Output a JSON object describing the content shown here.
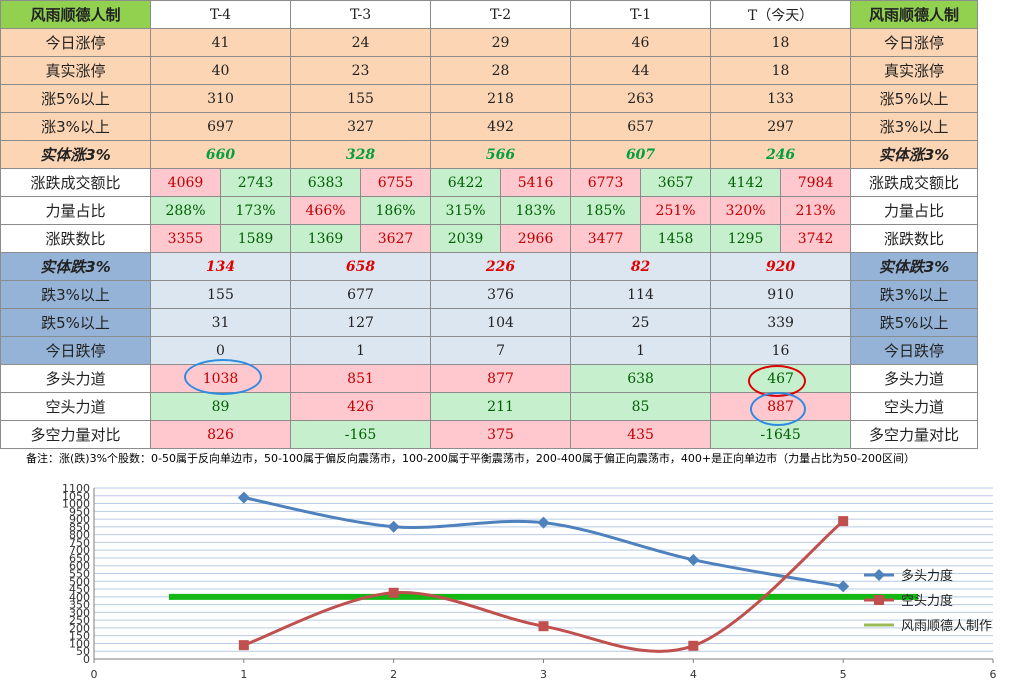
{
  "table": {
    "header": {
      "corner": "风雨顺德人制",
      "cols": [
        "T-4",
        "T-3",
        "T-2",
        "T-1",
        "T（今天）"
      ],
      "right": "风雨顺德人制"
    },
    "rows": [
      {
        "label": "今日涨停",
        "values": [
          "41",
          "24",
          "29",
          "46",
          "18"
        ]
      },
      {
        "label": "真实涨停",
        "values": [
          "40",
          "23",
          "28",
          "44",
          "18"
        ]
      },
      {
        "label": "涨5%以上",
        "values": [
          "310",
          "155",
          "218",
          "263",
          "133"
        ]
      },
      {
        "label": "涨3%以上",
        "values": [
          "697",
          "327",
          "492",
          "657",
          "297"
        ]
      },
      {
        "label": "实体涨3%",
        "values": [
          "660",
          "328",
          "566",
          "607",
          "246"
        ]
      },
      {
        "label": "涨跌成交额比",
        "pairs": [
          [
            "4069",
            "2743"
          ],
          [
            "6383",
            "6755"
          ],
          [
            "6422",
            "5416"
          ],
          [
            "6773",
            "3657"
          ],
          [
            "4142",
            "7984"
          ]
        ]
      },
      {
        "label": "力量占比",
        "pairs": [
          [
            "288%",
            "173%"
          ],
          [
            "466%",
            "186%"
          ],
          [
            "315%",
            "183%"
          ],
          [
            "185%",
            "251%"
          ],
          [
            "320%",
            "213%"
          ]
        ]
      },
      {
        "label": "涨跌数比",
        "pairs": [
          [
            "3355",
            "1589"
          ],
          [
            "1369",
            "3627"
          ],
          [
            "2039",
            "2966"
          ],
          [
            "3477",
            "1458"
          ],
          [
            "1295",
            "3742"
          ]
        ]
      },
      {
        "label": "实体跌3%",
        "values": [
          "134",
          "658",
          "226",
          "82",
          "920"
        ]
      },
      {
        "label": "跌3%以上",
        "values": [
          "155",
          "677",
          "376",
          "114",
          "910"
        ]
      },
      {
        "label": "跌5%以上",
        "values": [
          "31",
          "127",
          "104",
          "25",
          "339"
        ]
      },
      {
        "label": "今日跌停",
        "values": [
          "0",
          "1",
          "7",
          "1",
          "16"
        ]
      },
      {
        "label": "多头力道",
        "values": [
          "1038",
          "851",
          "877",
          "638",
          "467"
        ]
      },
      {
        "label": "空头力道",
        "values": [
          "89",
          "426",
          "211",
          "85",
          "887"
        ]
      },
      {
        "label": "多空力量对比",
        "values": [
          "826",
          "-165",
          "375",
          "435",
          "-1645"
        ]
      }
    ]
  },
  "note": "备注：涨(跌)3%个股数：0-50属于反向单边市，50-100属于偏反向震荡市，100-200属于平衡震荡市，200-400属于偏正向震荡市，400+是正向单边市（力量占比为50-200区间）",
  "chart_data": {
    "type": "line",
    "x": [
      1,
      2,
      3,
      4,
      5
    ],
    "series": [
      {
        "name": "多头力度",
        "values": [
          1038,
          851,
          877,
          638,
          467
        ],
        "color": "#4f81bd"
      },
      {
        "name": "空头力度",
        "values": [
          89,
          426,
          211,
          85,
          887
        ],
        "color": "#c0504d"
      },
      {
        "name": "风雨顺德人制作",
        "values": [
          400,
          400
        ],
        "x": [
          0.5,
          5.5
        ],
        "color": "#9bbb59"
      }
    ],
    "xlim": [
      0,
      6
    ],
    "xticks": [
      0,
      1,
      2,
      3,
      4,
      5,
      6
    ],
    "ylim": [
      0,
      1100
    ],
    "yticks": [
      0,
      50,
      100,
      150,
      200,
      250,
      300,
      350,
      400,
      450,
      500,
      550,
      600,
      650,
      700,
      750,
      800,
      850,
      900,
      950,
      1000,
      1050,
      1100
    ],
    "grid": true,
    "legend": "right"
  }
}
